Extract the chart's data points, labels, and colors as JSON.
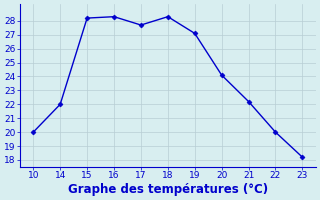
{
  "x_labels": [
    "10",
    "14",
    "15",
    "16",
    "17",
    "18",
    "19",
    "20",
    "21",
    "22",
    "23"
  ],
  "y": [
    20,
    22,
    28.2,
    28.3,
    27.7,
    28.3,
    27.1,
    24.1,
    22.2,
    20.0,
    18.2
  ],
  "line_color": "#0000cc",
  "marker": "D",
  "marker_size": 2.5,
  "bg_color": "#d8eef0",
  "grid_color": "#b8cdd4",
  "ylim": [
    17.5,
    29.2
  ],
  "yticks": [
    18,
    19,
    20,
    21,
    22,
    23,
    24,
    25,
    26,
    27,
    28
  ],
  "xlabel": "Graphe des températures (°C)",
  "xlabel_color": "#0000cc",
  "tick_color": "#0000cc",
  "tick_fontsize": 6.5,
  "xlabel_fontsize": 8.5,
  "linewidth": 1.0
}
